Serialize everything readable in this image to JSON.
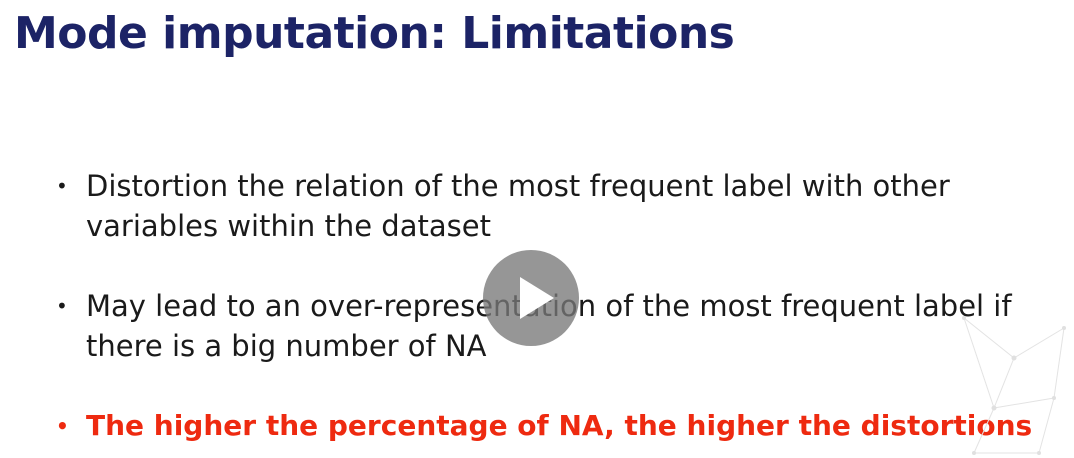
{
  "slide": {
    "title": "Mode imputation: Limitations",
    "bullets": [
      {
        "marker": "•",
        "text": "Distortion the relation of the most frequent label with other variables within the dataset"
      },
      {
        "marker": "•",
        "text": "May lead to an over-representation of the most frequent label if there is a big number of NA"
      },
      {
        "marker": "•",
        "text": "The higher the percentage of NA, the higher the distortions"
      }
    ],
    "colors": {
      "title": "#1c2366",
      "body": "#1a1a1a",
      "highlight": "#ee2a10",
      "play_overlay": "#787878"
    }
  },
  "video": {
    "play_icon": "play-icon"
  }
}
